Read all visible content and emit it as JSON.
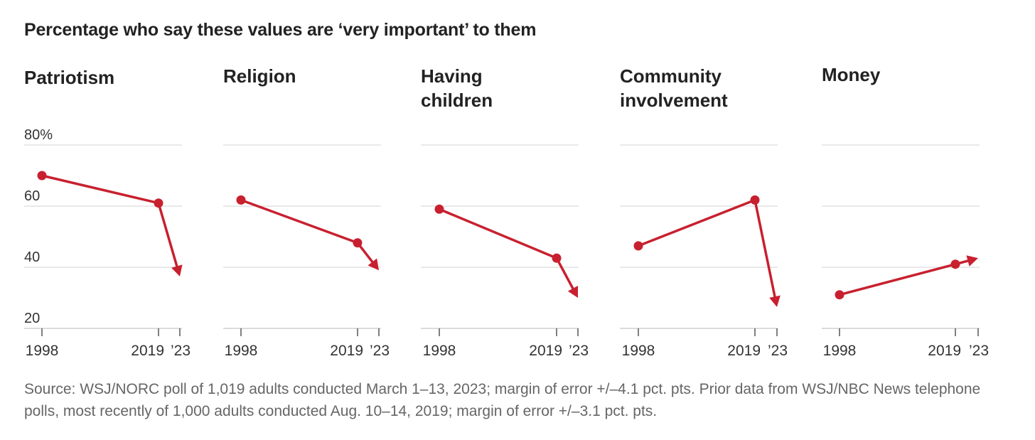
{
  "title": "Percentage who say these values are ‘very important’ to them",
  "source": "Source: WSJ/NORC poll of 1,019 adults conducted March 1–13, 2023; margin of error +/–4.1 pct. pts. Prior data from WSJ/NBC News telephone polls, most recently of 1,000 adults conducted Aug. 10–14, 2019; margin of error +/–3.1 pct. pts.",
  "colors": {
    "line": "#c8202f",
    "grid": "#e2e2e2",
    "tick": "#999999"
  },
  "chart_data": [
    {
      "type": "line",
      "title": "Patriotism",
      "x": [
        1998,
        2019,
        2023
      ],
      "x_tick_labels": [
        "1998",
        "2019",
        "’23"
      ],
      "y": [
        70,
        61,
        37
      ],
      "ylim": [
        20,
        80
      ],
      "y_ticks": [
        20,
        40,
        60,
        80
      ],
      "y_tick_labels": [
        "20",
        "40",
        "60",
        "80%"
      ],
      "grid": true
    },
    {
      "type": "line",
      "title": "Religion",
      "x": [
        1998,
        2019,
        2023
      ],
      "x_tick_labels": [
        "1998",
        "2019",
        "’23"
      ],
      "y": [
        62,
        48,
        39
      ],
      "ylim": [
        20,
        80
      ],
      "y_ticks": [
        20,
        40,
        60,
        80
      ],
      "grid": true
    },
    {
      "type": "line",
      "title": "Having\nchildren",
      "x": [
        1998,
        2019,
        2023
      ],
      "x_tick_labels": [
        "1998",
        "2019",
        "’23"
      ],
      "y": [
        59,
        43,
        30
      ],
      "ylim": [
        20,
        80
      ],
      "y_ticks": [
        20,
        40,
        60,
        80
      ],
      "grid": true
    },
    {
      "type": "line",
      "title": "Community\ninvolvement",
      "x": [
        1998,
        2019,
        2023
      ],
      "x_tick_labels": [
        "1998",
        "2019",
        "’23"
      ],
      "y": [
        47,
        62,
        27
      ],
      "ylim": [
        20,
        80
      ],
      "y_ticks": [
        20,
        40,
        60,
        80
      ],
      "grid": true
    },
    {
      "type": "line",
      "title": "Money",
      "x": [
        1998,
        2019,
        2023
      ],
      "x_tick_labels": [
        "1998",
        "2019",
        "’23"
      ],
      "y": [
        31,
        41,
        43
      ],
      "ylim": [
        20,
        80
      ],
      "y_ticks": [
        20,
        40,
        60,
        80
      ],
      "grid": true
    }
  ]
}
